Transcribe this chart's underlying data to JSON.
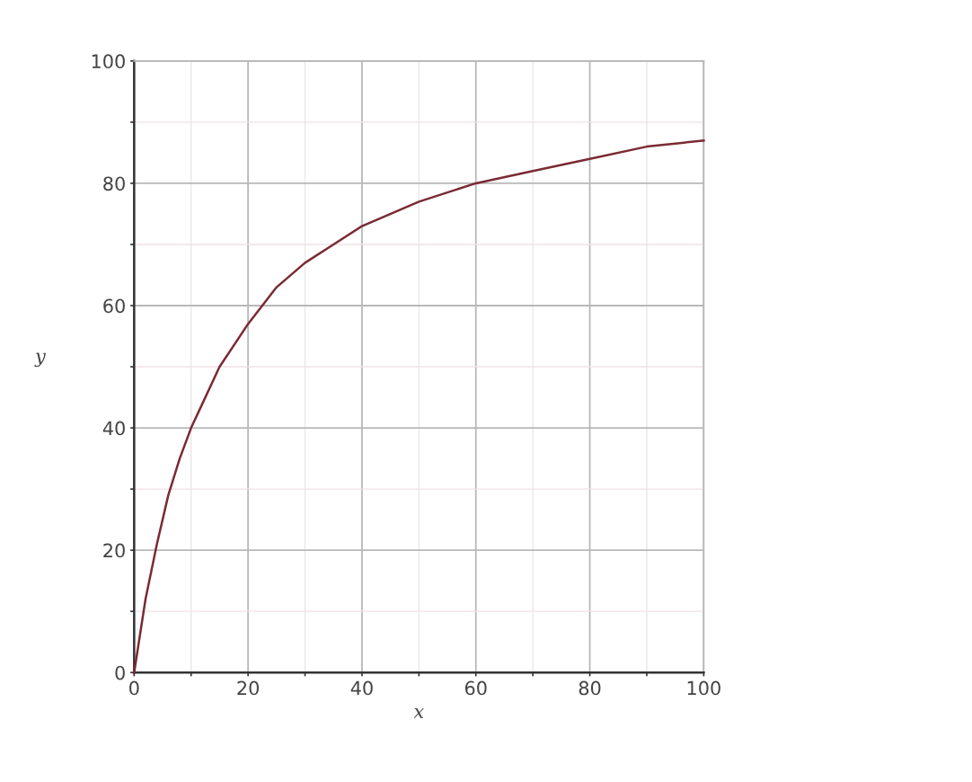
{
  "chart_data": {
    "type": "line",
    "xlabel": "x",
    "ylabel": "y",
    "x": [
      0,
      2,
      4,
      6,
      8,
      10,
      12,
      15,
      20,
      25,
      30,
      35,
      40,
      50,
      60,
      70,
      80,
      90,
      100
    ],
    "series": [
      {
        "color": "#7a2a33",
        "values": [
          0,
          12,
          21,
          29,
          35,
          40,
          44,
          50,
          57,
          63,
          67,
          70,
          73,
          77,
          80,
          82,
          84,
          86,
          87
        ]
      }
    ],
    "xlim": [
      0,
      100
    ],
    "ylim": [
      0,
      100
    ],
    "xticks": [
      0,
      {
        "value": 10,
        "label": null
      },
      20,
      {
        "value": 30,
        "label": null
      },
      40,
      {
        "value": 50,
        "label": null
      },
      60,
      {
        "value": 70,
        "label": null
      },
      80,
      {
        "value": 90,
        "label": null
      },
      100
    ],
    "yticks": [
      0,
      {
        "value": 10,
        "label": null
      },
      20,
      {
        "value": 30,
        "label": null
      },
      40,
      {
        "value": 50,
        "label": null
      },
      60,
      {
        "value": 70,
        "label": null
      },
      80,
      {
        "value": 90,
        "label": null
      },
      100
    ],
    "grid": true,
    "line_style": "solid",
    "marker": "none"
  }
}
